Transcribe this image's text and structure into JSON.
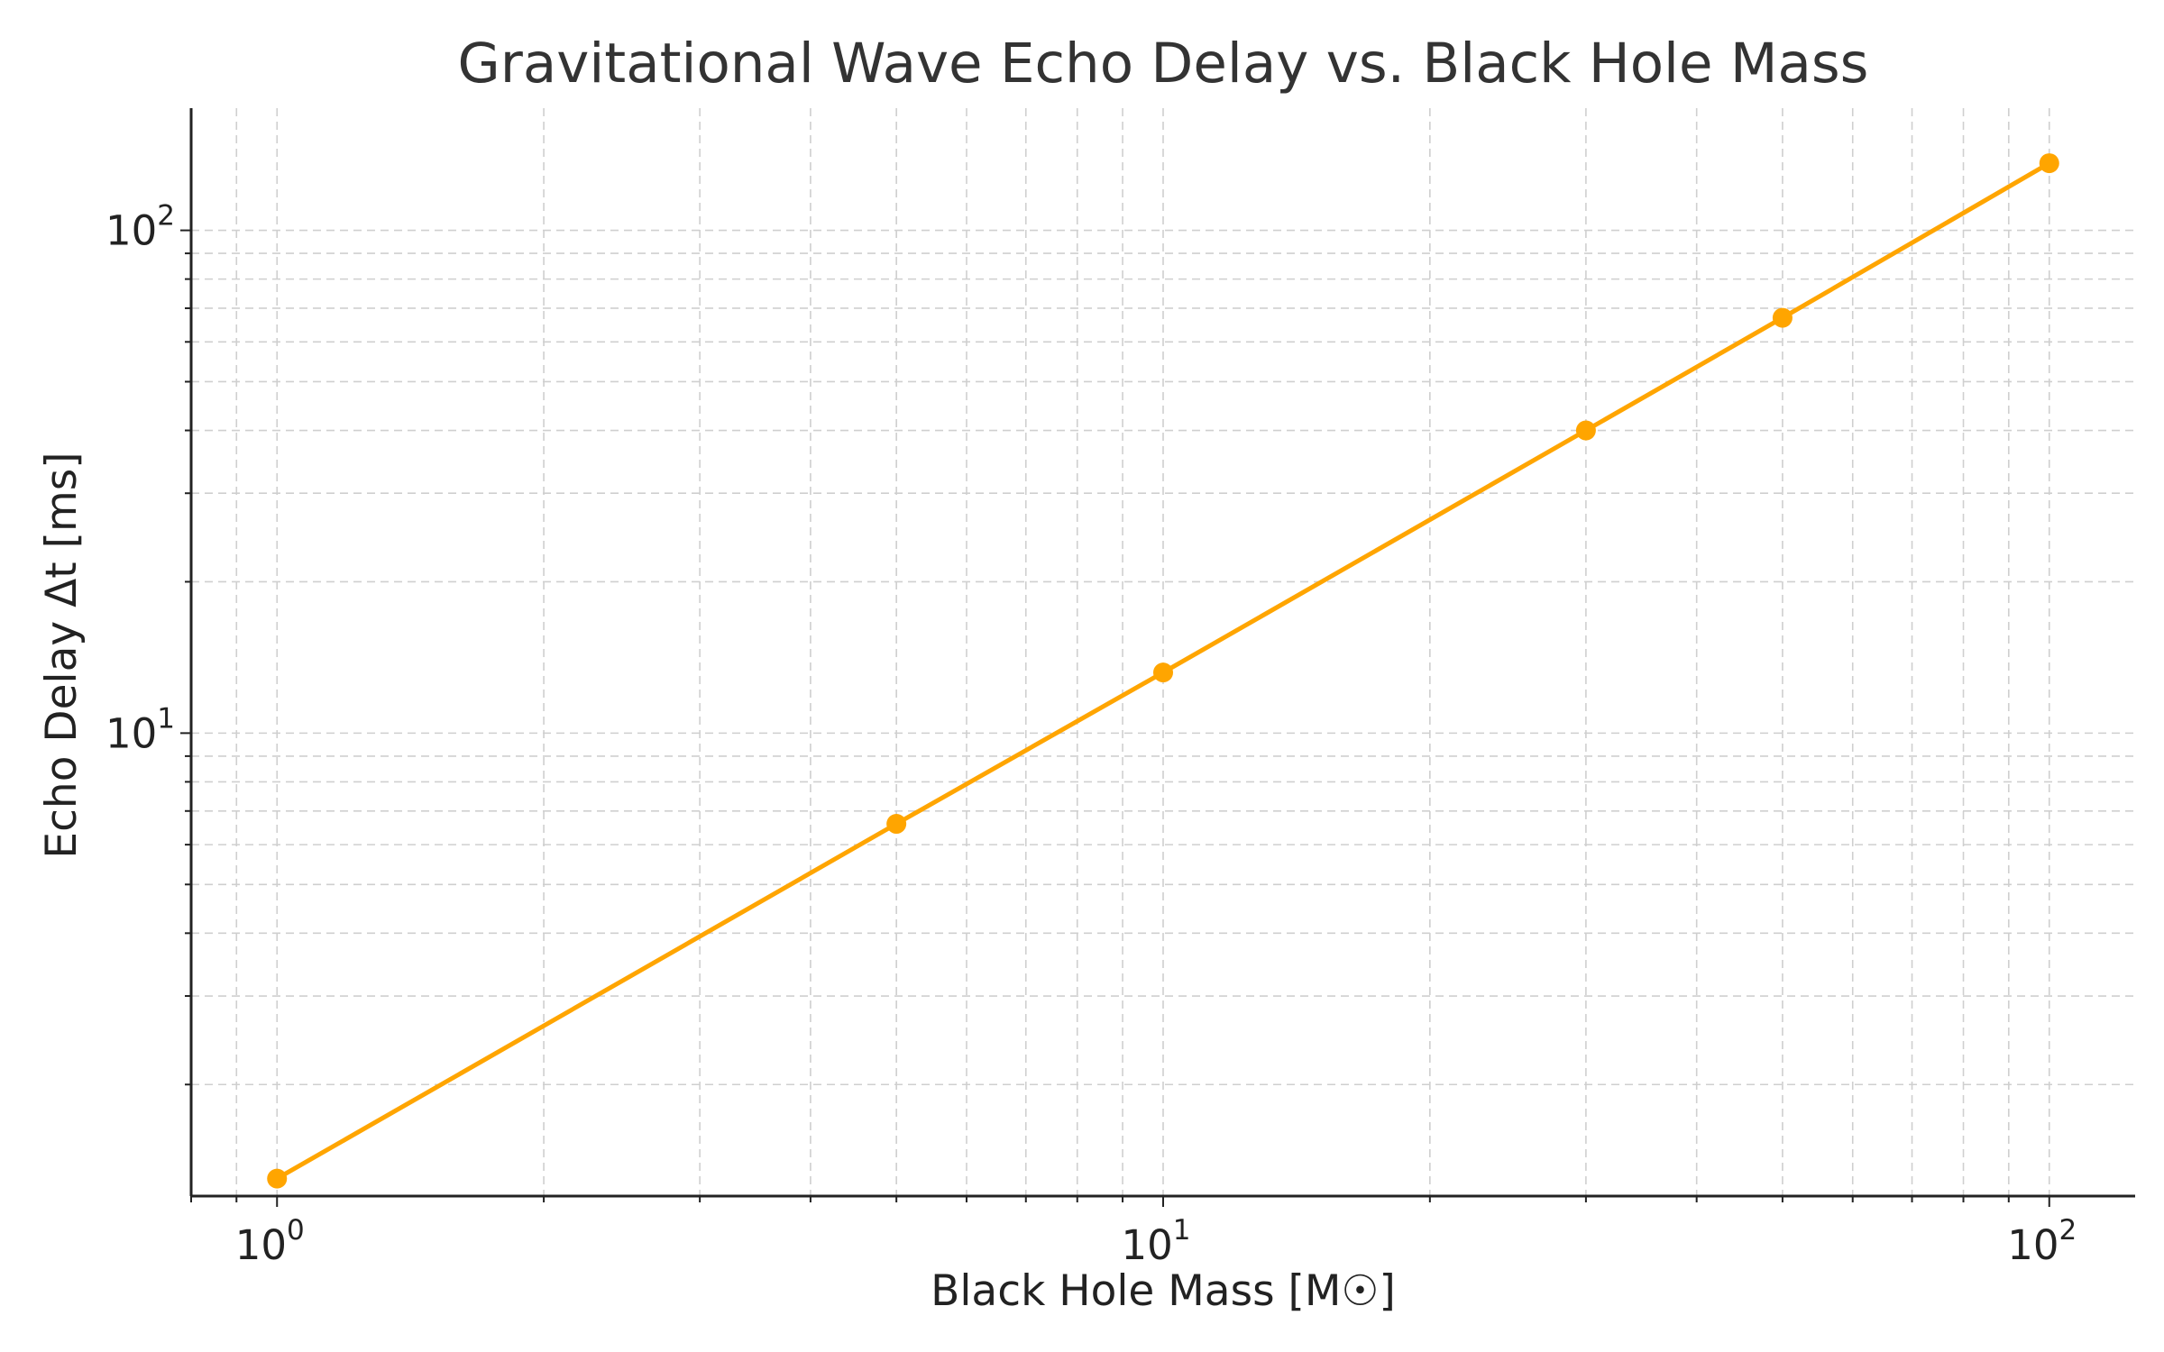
{
  "chart_data": {
    "type": "line",
    "title": "Gravitational Wave Echo Delay vs. Black Hole Mass",
    "xlabel": "Black Hole Mass [M☉]",
    "ylabel": "Echo Delay Δt [ms]",
    "xscale": "log",
    "yscale": "log",
    "xlim": [
      0.8,
      125
    ],
    "ylim": [
      1.2,
      175
    ],
    "x_ticks": [
      {
        "base": "10",
        "exp": "0"
      },
      {
        "base": "10",
        "exp": "1"
      },
      {
        "base": "10",
        "exp": "2"
      }
    ],
    "y_ticks": [
      {
        "base": "10",
        "exp": "1"
      },
      {
        "base": "10",
        "exp": "2"
      }
    ],
    "grid": true,
    "series": [
      {
        "name": "Echo delay",
        "color": "#FFA500",
        "x": [
          1,
          5,
          10,
          30,
          50,
          100
        ],
        "y": [
          1.3,
          6.6,
          13.2,
          40,
          67,
          136
        ]
      }
    ]
  }
}
